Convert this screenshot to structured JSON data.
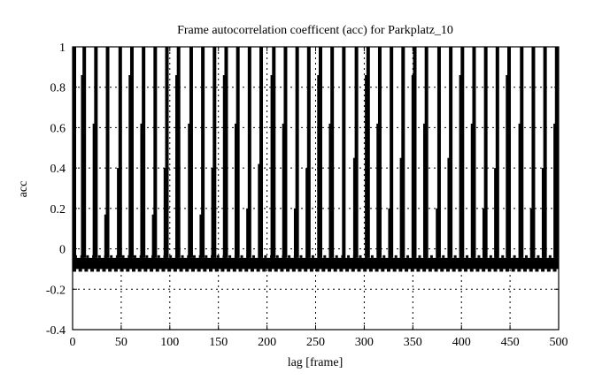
{
  "chart_data": {
    "type": "bar",
    "title": "Frame autocorrelation coefficent (acc) for Parkplatz_10",
    "xlabel": "lag [frame]",
    "ylabel": "acc",
    "xlim": [
      0,
      500
    ],
    "ylim": [
      -0.4,
      1
    ],
    "xticks": [
      "0",
      "50",
      "100",
      "150",
      "200",
      "250",
      "300",
      "350",
      "400",
      "450",
      "500"
    ],
    "yticks": [
      "-0.4",
      "-0.2",
      "0",
      "0.2",
      "0.4",
      "0.6",
      "0.8",
      "1"
    ],
    "grid": true,
    "color": "#000000",
    "baseline_band": [
      -0.1,
      -0.045
    ],
    "peaks": {
      "lags": [
        0,
        12,
        24,
        36,
        49,
        61,
        73,
        85,
        97,
        109,
        122,
        134,
        146,
        158,
        170,
        182,
        194,
        207,
        219,
        231,
        243,
        255,
        267,
        279,
        292,
        304,
        316,
        328,
        340,
        352,
        364,
        377,
        389,
        401,
        413,
        425,
        437,
        449,
        462,
        474,
        486,
        498
      ],
      "values": [
        1,
        1,
        1,
        1,
        1,
        1,
        1,
        1,
        1,
        1,
        1,
        1,
        1,
        1,
        1,
        1,
        1,
        1,
        1,
        1,
        1,
        1,
        1,
        1,
        1,
        1,
        1,
        1,
        1,
        1,
        1,
        1,
        1,
        1,
        1,
        1,
        1,
        1,
        1,
        1,
        1,
        1
      ]
    },
    "side_peaks": {
      "lags": [
        2,
        10,
        22,
        34,
        47,
        59,
        71,
        83,
        95,
        107,
        120,
        132,
        144,
        156,
        168,
        180,
        192,
        205,
        217,
        229,
        241,
        253,
        265,
        279,
        290,
        302,
        314,
        326,
        338,
        350,
        362,
        375,
        387,
        399,
        411,
        423,
        435,
        447,
        460,
        472,
        484,
        496
      ],
      "values": [
        0.6,
        0.86,
        0.62,
        0.17,
        0.4,
        0.86,
        0.62,
        0.17,
        0.4,
        0.86,
        0.62,
        0.17,
        0.4,
        0.86,
        0.62,
        0.2,
        0.42,
        0.86,
        0.62,
        0.2,
        0.4,
        0.86,
        0.62,
        0.2,
        0.45,
        0.86,
        0.62,
        0.2,
        0.45,
        0.86,
        0.62,
        0.2,
        0.45,
        0.86,
        0.62,
        0.2,
        0.4,
        0.86,
        0.62,
        0.2,
        0.4,
        0.62
      ]
    }
  }
}
